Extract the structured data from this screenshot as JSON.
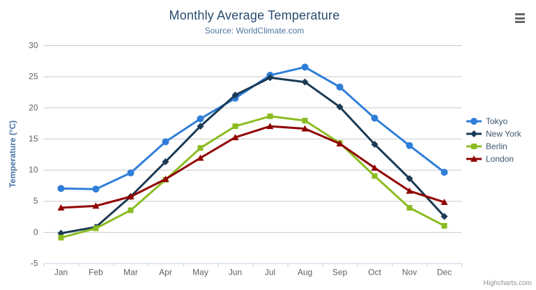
{
  "chart": {
    "credits_label": "Highcharts.com",
    "colors": {
      "title": "#274b6d",
      "subtitle": "#4d759e",
      "axis_labels": "#606060",
      "yaxis_title": "#4572a7",
      "grid_line": "#c9c9c9",
      "axis_line": "#c0d0e0",
      "legend_text": "#3e576f",
      "credits": "#909090",
      "menu_icon": "#666666",
      "background": "#ffffff"
    }
  },
  "chart_data": {
    "type": "line",
    "title": "Monthly Average Temperature",
    "subtitle": "Source: WorldClimate.com",
    "categories": [
      "Jan",
      "Feb",
      "Mar",
      "Apr",
      "May",
      "Jun",
      "Jul",
      "Aug",
      "Sep",
      "Oct",
      "Nov",
      "Dec"
    ],
    "xlabel": "",
    "ylabel": "Temperature (°C)",
    "ylim": [
      -5,
      30
    ],
    "yticks": [
      -5,
      0,
      5,
      10,
      15,
      20,
      25,
      30
    ],
    "grid": true,
    "legend_position": "right-middle",
    "series": [
      {
        "name": "Tokyo",
        "color": "#2f7ed8",
        "marker": "circle",
        "values": [
          7.0,
          6.9,
          9.5,
          14.5,
          18.2,
          21.5,
          25.2,
          26.5,
          23.3,
          18.3,
          13.9,
          9.6
        ]
      },
      {
        "name": "New York",
        "color": "#1a3a54",
        "marker": "diamond",
        "values": [
          -0.2,
          0.8,
          5.7,
          11.3,
          17.0,
          22.0,
          24.8,
          24.1,
          20.1,
          14.1,
          8.6,
          2.5
        ]
      },
      {
        "name": "Berlin",
        "color": "#8bbc21",
        "marker": "square",
        "values": [
          -0.9,
          0.6,
          3.5,
          8.4,
          13.5,
          17.0,
          18.6,
          17.9,
          14.3,
          9.0,
          3.9,
          1.0
        ]
      },
      {
        "name": "London",
        "color": "#910000",
        "marker": "triangle",
        "values": [
          3.9,
          4.2,
          5.7,
          8.5,
          11.9,
          15.2,
          17.0,
          16.6,
          14.2,
          10.3,
          6.6,
          4.8
        ]
      }
    ]
  }
}
